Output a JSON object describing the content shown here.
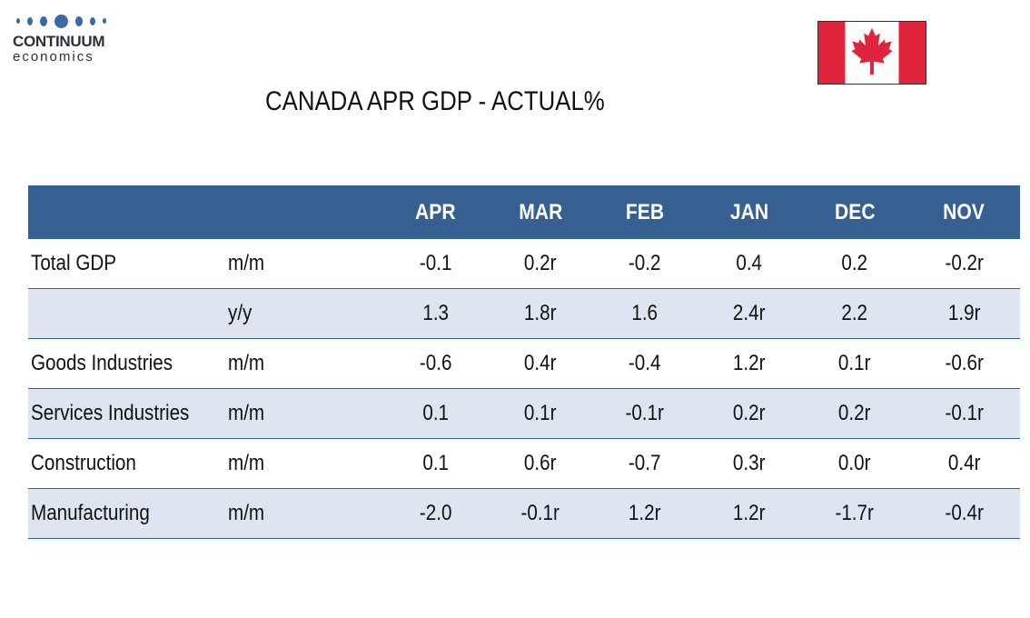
{
  "logo": {
    "name": "CONTINUUM",
    "sub": "economics"
  },
  "title": "CANADA APR GDP - ACTUAL%",
  "colors": {
    "header": "#376092",
    "row_shade": "#dde6f0",
    "flag_red": "#e0243b"
  },
  "table": {
    "columns": [
      "APR",
      "MAR",
      "FEB",
      "JAN",
      "DEC",
      "NOV"
    ],
    "rows": [
      {
        "label": "Total GDP",
        "measure": "m/m",
        "values": [
          "-0.1",
          "0.2r",
          "-0.2",
          "0.4",
          "0.2",
          "-0.2r"
        ]
      },
      {
        "label": "",
        "measure": "y/y",
        "values": [
          "1.3",
          "1.8r",
          "1.6",
          "2.4r",
          "2.2",
          "1.9r"
        ]
      },
      {
        "label": "Goods Industries",
        "measure": "m/m",
        "values": [
          "-0.6",
          "0.4r",
          "-0.4",
          "1.2r",
          "0.1r",
          "-0.6r"
        ]
      },
      {
        "label": "Services Industries",
        "measure": "m/m",
        "values": [
          "0.1",
          "0.1r",
          "-0.1r",
          "0.2r",
          "0.2r",
          "-0.1r"
        ]
      },
      {
        "label": "Construction",
        "measure": "m/m",
        "values": [
          "0.1",
          "0.6r",
          "-0.7",
          "0.3r",
          "0.0r",
          "0.4r"
        ]
      },
      {
        "label": "Manufacturing",
        "measure": "m/m",
        "values": [
          "-2.0",
          "-0.1r",
          "1.2r",
          "1.2r",
          "-1.7r",
          "-0.4r"
        ]
      }
    ]
  }
}
